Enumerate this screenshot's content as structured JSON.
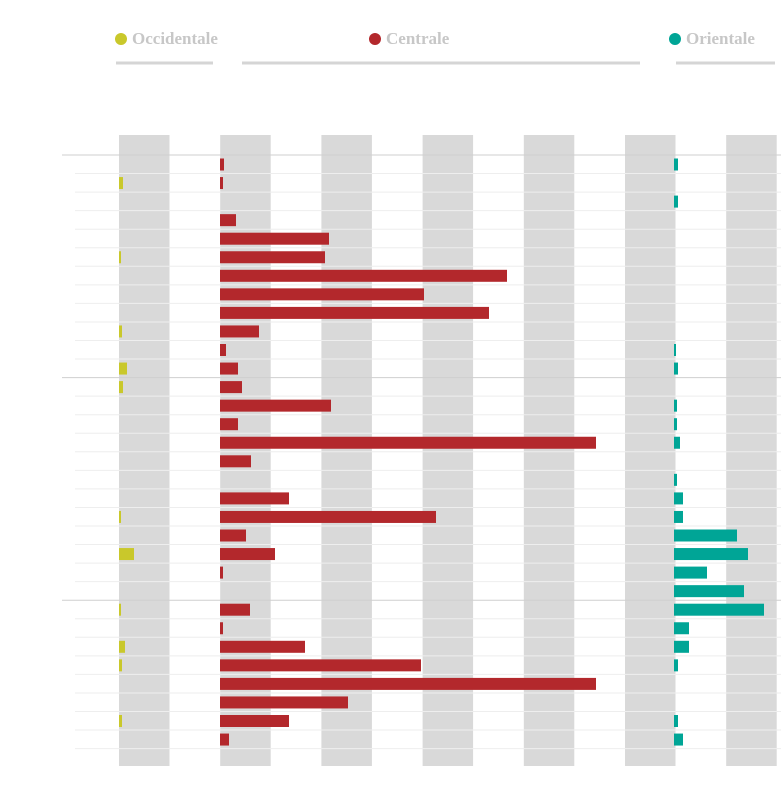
{
  "chart_data": {
    "type": "bar",
    "orientation": "horizontal",
    "series": [
      {
        "name": "Occidentale",
        "color": "#c9c82b",
        "xlim": [
          0,
          94
        ],
        "values": [
          0,
          4,
          0,
          0,
          0,
          2,
          0,
          0,
          0,
          3,
          0,
          8,
          4,
          0,
          0,
          0,
          0,
          0,
          0,
          2,
          0,
          15,
          0,
          0,
          2,
          0,
          6,
          3,
          0,
          0,
          3,
          0
        ]
      },
      {
        "name": "Centrale",
        "color": "#b3282c",
        "xlim": [
          0,
          420
        ],
        "values": [
          4,
          3,
          0,
          16,
          109,
          105,
          287,
          204,
          269,
          39,
          6,
          18,
          22,
          111,
          18,
          376,
          31,
          0,
          69,
          216,
          26,
          55,
          3,
          0,
          30,
          3,
          85,
          201,
          376,
          128,
          69,
          9
        ]
      },
      {
        "name": "Orientale",
        "color": "#00a596",
        "xlim": [
          0,
          105
        ],
        "values": [
          4,
          0,
          4,
          0,
          0,
          0,
          0,
          0,
          0,
          0,
          2,
          4,
          0,
          3,
          3,
          6,
          0,
          3,
          9,
          9,
          63,
          74,
          33,
          70,
          90,
          15,
          15,
          4,
          0,
          0,
          4,
          9
        ]
      }
    ]
  }
}
